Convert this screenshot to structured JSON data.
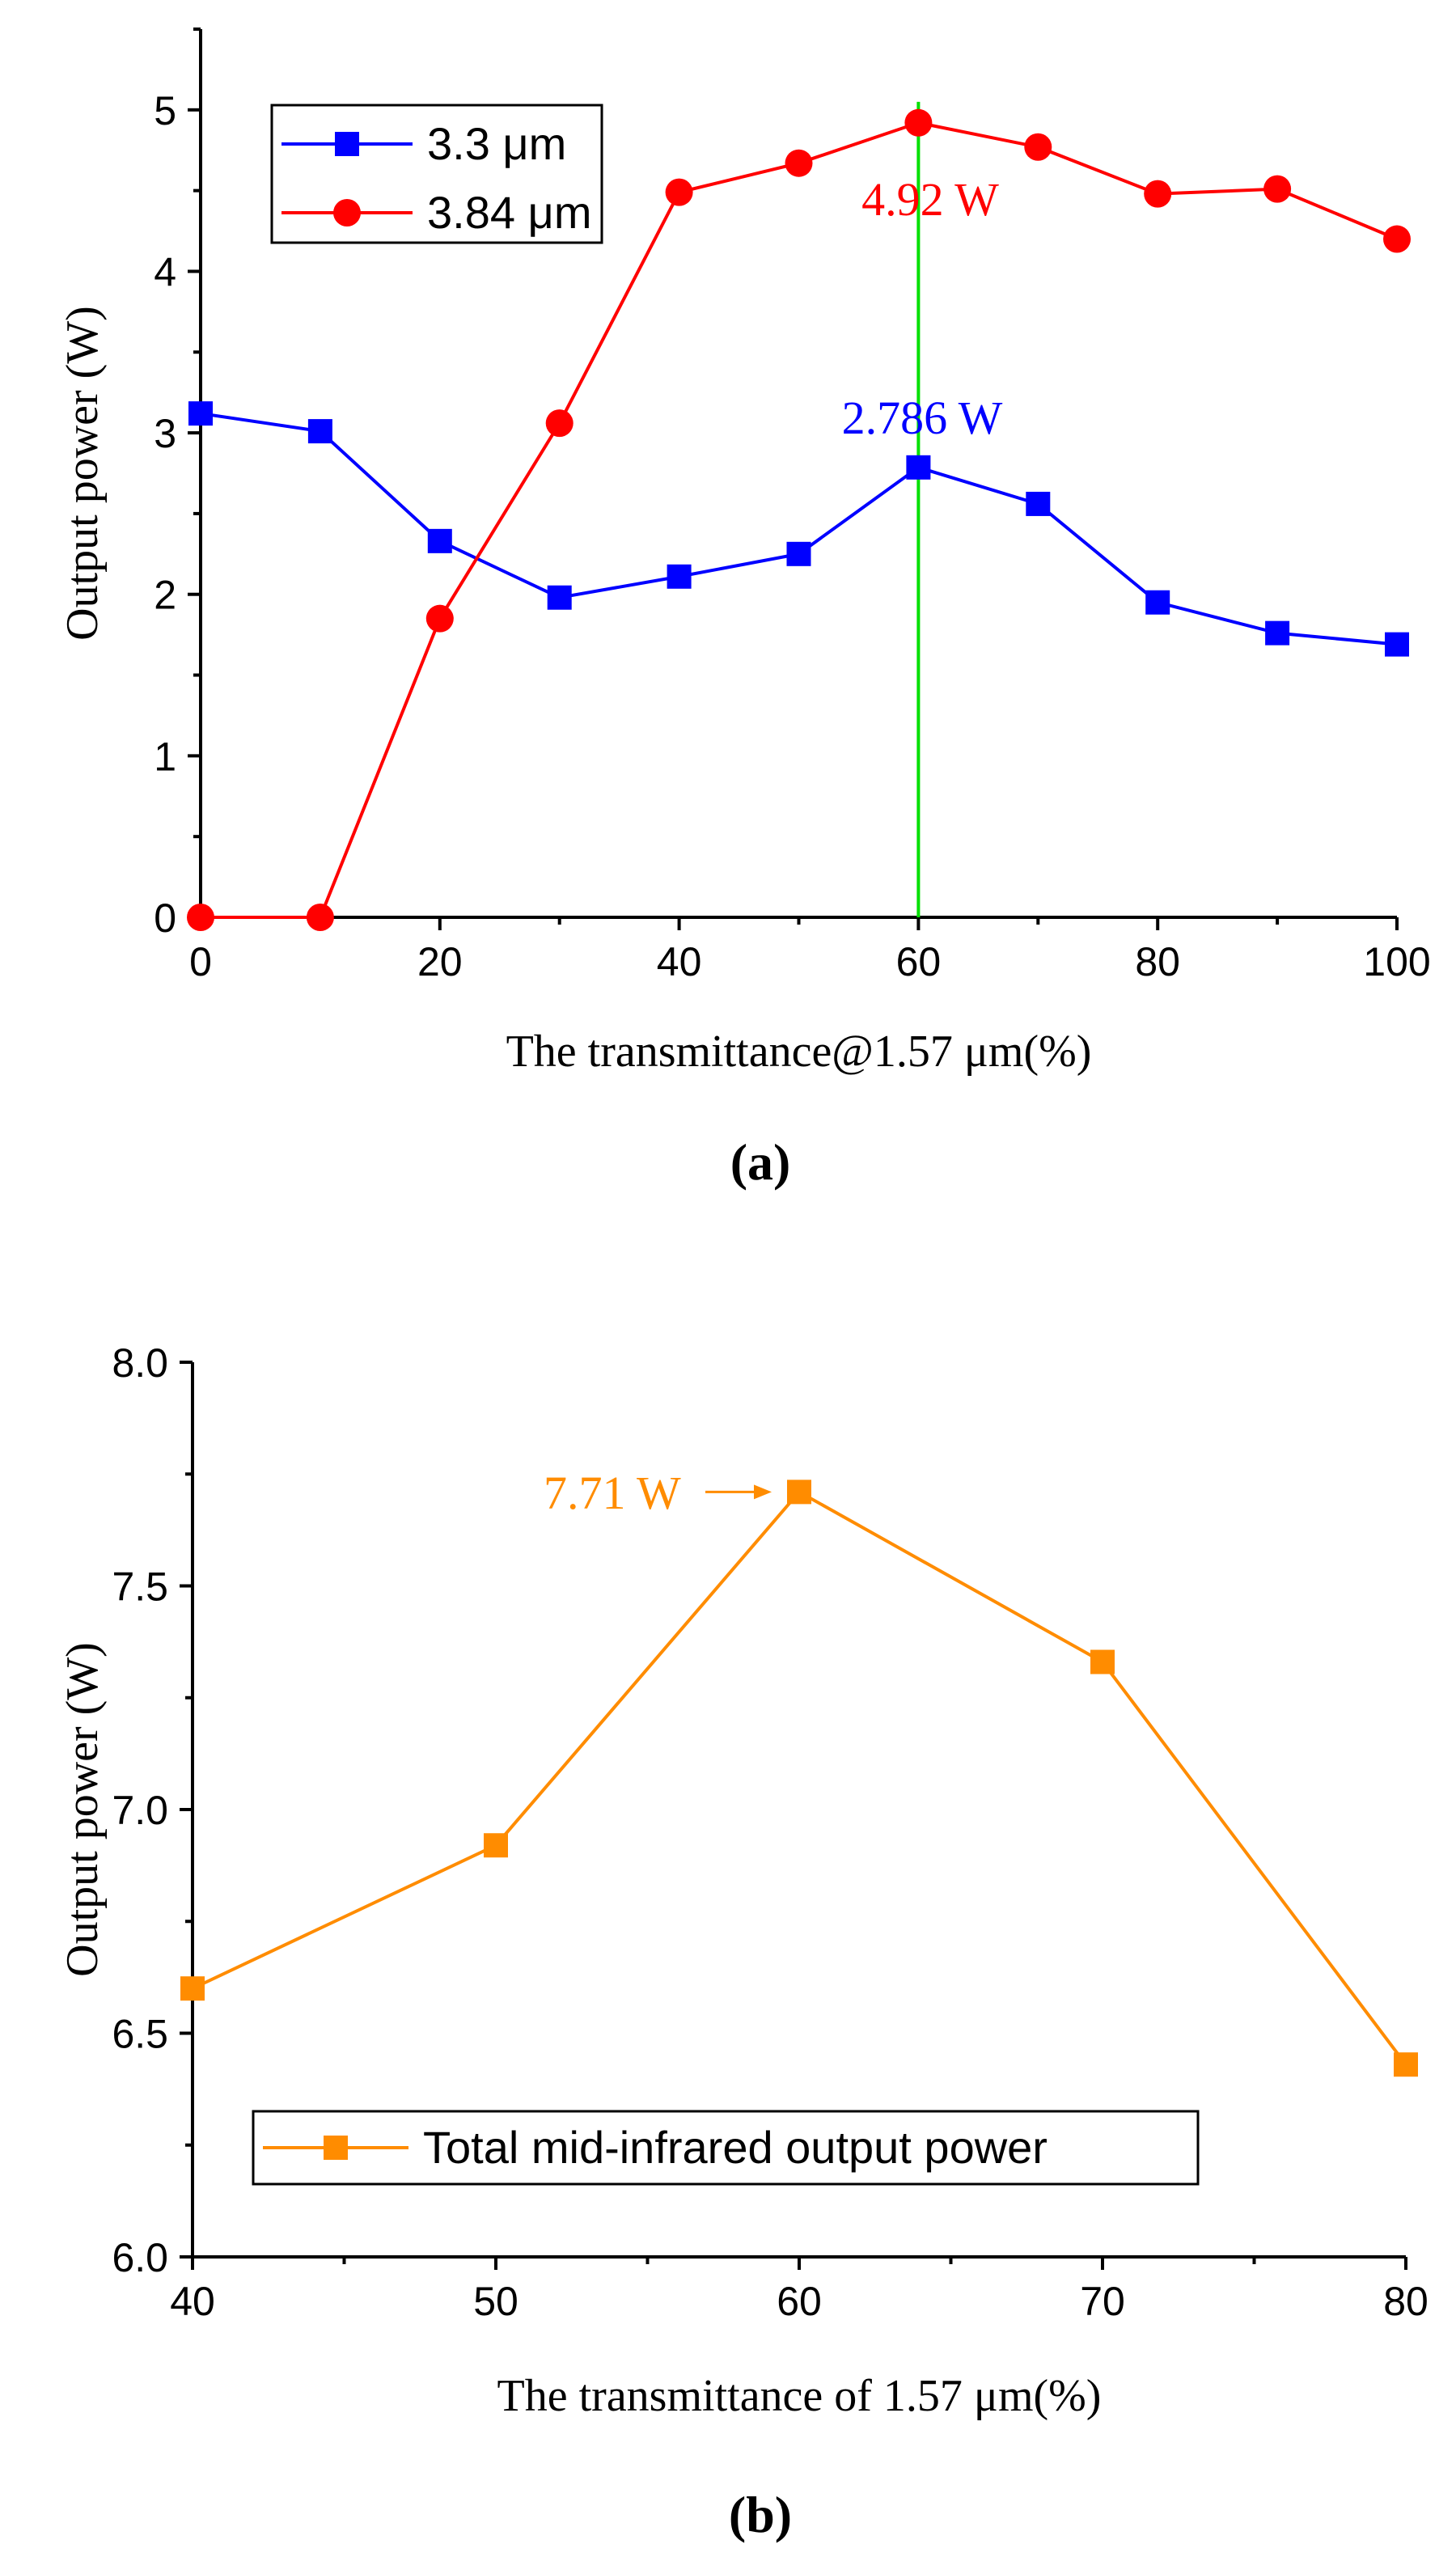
{
  "chart_data": [
    {
      "type": "line",
      "panel_label": "a",
      "xlabel": "The transmittance@1.57 μm(%)",
      "ylabel": "Output power (W)",
      "xlim": [
        0,
        100
      ],
      "ylim": [
        0,
        5.5
      ],
      "x_ticks": [
        0,
        20,
        40,
        60,
        80,
        100
      ],
      "y_ticks": [
        0,
        1,
        2,
        3,
        4,
        5
      ],
      "x": [
        0,
        10,
        20,
        30,
        40,
        50,
        60,
        70,
        80,
        90,
        100
      ],
      "series": [
        {
          "name": "3.3 μm",
          "marker": "square",
          "color": "#0000ff",
          "values": [
            3.12,
            3.01,
            2.33,
            1.98,
            2.11,
            2.25,
            2.786,
            2.56,
            1.95,
            1.76,
            1.69
          ]
        },
        {
          "name": "3.84 μm",
          "marker": "circle",
          "color": "#ff0000",
          "values": [
            0.0,
            0.0,
            1.85,
            3.06,
            4.49,
            4.67,
            4.92,
            4.77,
            4.48,
            4.51,
            4.2
          ]
        }
      ],
      "reference_line": {
        "x": 60,
        "color": "#00e000"
      },
      "annotations": [
        {
          "text": "4.92 W",
          "x": 60,
          "y": 4.92,
          "color": "#ff0000"
        },
        {
          "text": "2.786 W",
          "x": 60,
          "y": 2.786,
          "color": "#0000ff"
        }
      ],
      "legend_position": "top-left"
    },
    {
      "type": "line",
      "panel_label": "b",
      "xlabel": "The transmittance of 1.57 μm(%)",
      "ylabel": "Output power (W)",
      "xlim": [
        40,
        80
      ],
      "ylim": [
        6.0,
        8.0
      ],
      "x_ticks": [
        40,
        50,
        60,
        70,
        80
      ],
      "y_ticks": [
        "6.0",
        "6.5",
        "7.0",
        "7.5",
        "8.0"
      ],
      "x": [
        40,
        50,
        60,
        70,
        80
      ],
      "series": [
        {
          "name": "Total mid-infrared output power",
          "marker": "square",
          "color": "#ff8c00",
          "values": [
            6.6,
            6.92,
            7.71,
            7.33,
            6.43
          ]
        }
      ],
      "annotations": [
        {
          "text": "7.71 W",
          "x": 60,
          "y": 7.71,
          "color": "#ff8c00",
          "arrow": true
        }
      ],
      "legend_position": "bottom-center"
    }
  ]
}
